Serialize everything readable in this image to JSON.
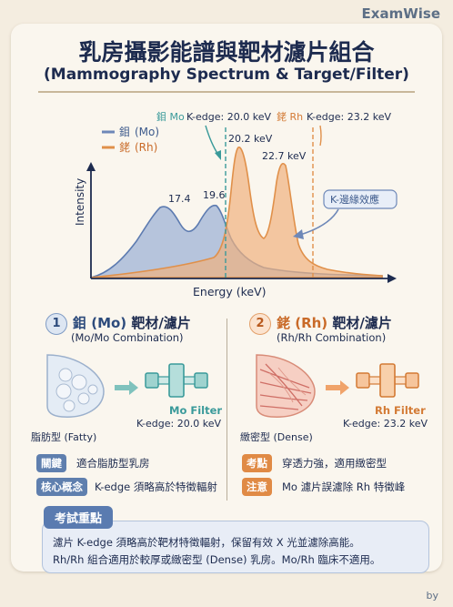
{
  "brand": "ExamWise",
  "title_zh": "乳房攝影能譜與靶材濾片組合",
  "title_en": "(Mammography Spectrum & Target/Filter)",
  "chart_data": {
    "type": "line",
    "xlabel": "Energy (keV)",
    "ylabel": "Intensity",
    "legend": [
      {
        "symbol": "鉬",
        "name": "(Mo)",
        "color": "#6e88b8"
      },
      {
        "symbol": "銠",
        "name": "(Rh)",
        "color": "#e0904a"
      }
    ],
    "series": [
      {
        "name": "鉬 (Mo)",
        "peaks_keV": [
          17.4,
          19.6
        ],
        "k_edge_keV": 20.0
      },
      {
        "name": "銠 (Rh)",
        "peaks_keV": [
          20.2,
          22.7
        ],
        "k_edge_keV": 23.2
      }
    ],
    "peak_labels": [
      "17.4",
      "19.6",
      "20.2 keV",
      "22.7 keV"
    ],
    "kedge_mo": {
      "symbol": "鉬 Mo",
      "text": "K-edge: 20.0 keV"
    },
    "kedge_rh": {
      "symbol": "銠 Rh",
      "text": "K-edge: 23.2 keV"
    },
    "kedge_effect": "K-邊緣效應",
    "grid": false,
    "legend_position": "top-left"
  },
  "left": {
    "num": "1",
    "head_el": "鉬 (Mo)",
    "head_rest": " 靶材/濾片",
    "sub": "(Mo/Mo Combination)",
    "tissue": "脂肪型 (Fatty)",
    "filter": "Mo Filter",
    "kedge": "K-edge: 20.0 keV",
    "tag1": "關鍵",
    "tag1_text": "適合脂肪型乳房",
    "tag2": "核心概念",
    "tag2_text": "K-edge 須略高於特徵輻射"
  },
  "right": {
    "num": "2",
    "head_el": "銠 (Rh)",
    "head_rest": " 靶材/濾片",
    "sub": "(Rh/Rh Combination)",
    "tissue": "緻密型 (Dense)",
    "filter": "Rh Filter",
    "kedge": "K-edge: 23.2 keV",
    "tag1": "考點",
    "tag1_text": "穿透力強，適用緻密型",
    "tag2": "注意",
    "tag2_text": "Mo 濾片誤濾除 Rh 特徵峰"
  },
  "exam": {
    "title": "考試重點",
    "line1": "濾片 K-edge 須略高於靶材特徵輻射，保留有效 X 光並濾除高能。",
    "line2": "Rh/Rh 組合適用於較厚或緻密型 (Dense) 乳房。Mo/Rh 臨床不適用。"
  },
  "byline": "by"
}
